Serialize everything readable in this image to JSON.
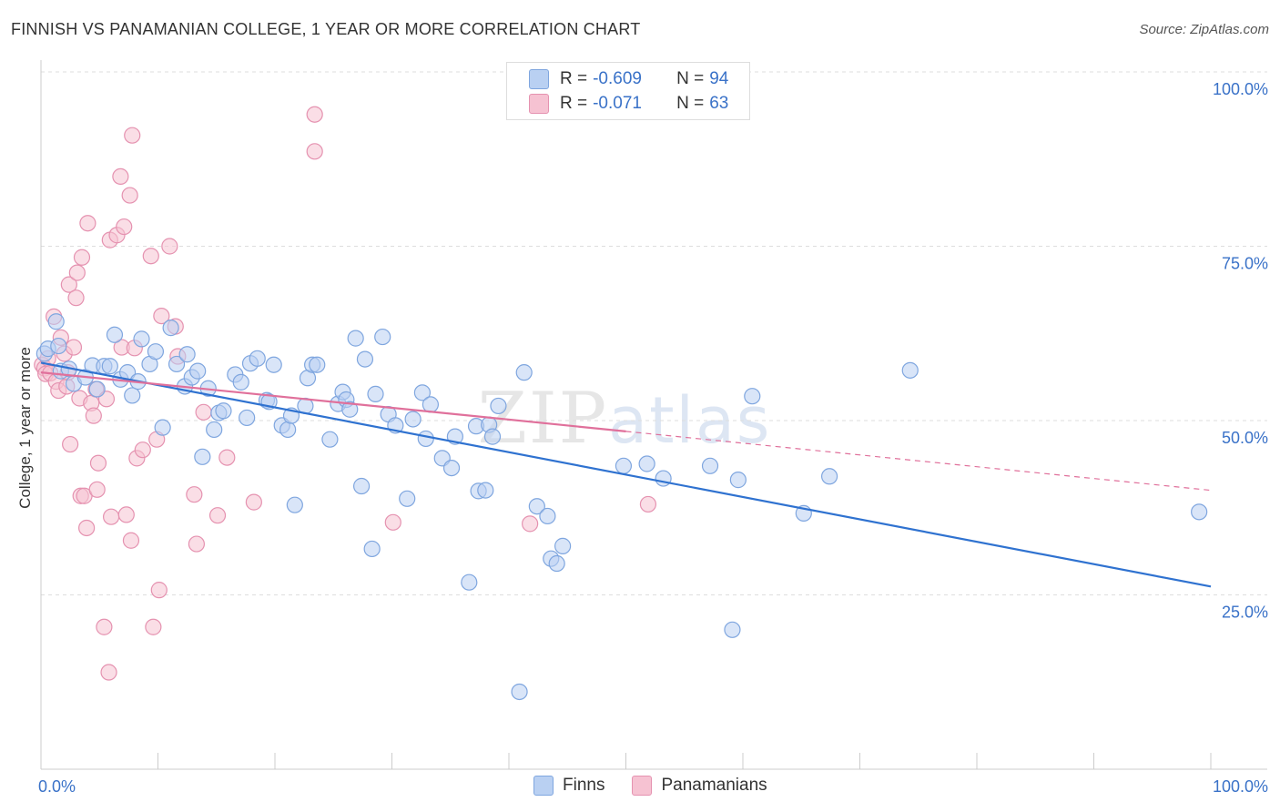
{
  "title": "FINNISH VS PANAMANIAN COLLEGE, 1 YEAR OR MORE CORRELATION CHART",
  "source": "Source: ZipAtlas.com",
  "watermark": "ZIPatlas",
  "colors": {
    "finns_fill": "#b9d0f2",
    "finns_stroke": "#7fa6df",
    "finns_line": "#2f72d0",
    "pan_fill": "#f6c2d2",
    "pan_stroke": "#e592b0",
    "pan_line": "#e0709b",
    "tick": "#3a72c8"
  },
  "legend": {
    "finns": {
      "r_label": "R =",
      "r_value": "-0.609",
      "n_label": "N =",
      "n_value": "94"
    },
    "pan": {
      "r_label": "R =",
      "r_value": "-0.071",
      "n_label": "N =",
      "n_value": "63"
    }
  },
  "bottom_legend": {
    "finns": "Finns",
    "pan": "Panamanians"
  },
  "chart_data": {
    "type": "scatter",
    "title": "FINNISH VS PANAMANIAN COLLEGE, 1 YEAR OR MORE CORRELATION CHART",
    "xlabel": "",
    "ylabel": "College, 1 year or more",
    "xlim": [
      0,
      100
    ],
    "ylim": [
      0,
      100
    ],
    "x_tick_labels": [
      "0.0%",
      "100.0%"
    ],
    "y_ticks": [
      25,
      50,
      75,
      100
    ],
    "y_tick_labels": [
      "25.0%",
      "50.0%",
      "75.0%",
      "100.0%"
    ],
    "series": [
      {
        "name": "Finns",
        "trend": {
          "x": [
            0,
            100
          ],
          "y": [
            58.3,
            26.2
          ]
        },
        "points": [
          [
            0.3,
            59.6
          ],
          [
            0.6,
            60.3
          ],
          [
            1.3,
            64.2
          ],
          [
            1.5,
            60.7
          ],
          [
            1.7,
            57.1
          ],
          [
            2.4,
            57.4
          ],
          [
            2.8,
            55.3
          ],
          [
            3.8,
            56.2
          ],
          [
            4.4,
            57.9
          ],
          [
            4.8,
            54.5
          ],
          [
            5.4,
            57.8
          ],
          [
            5.9,
            57.8
          ],
          [
            6.3,
            62.3
          ],
          [
            6.8,
            55.9
          ],
          [
            7.4,
            56.9
          ],
          [
            7.8,
            53.6
          ],
          [
            8.3,
            55.6
          ],
          [
            8.6,
            61.7
          ],
          [
            9.3,
            58.1
          ],
          [
            9.8,
            59.9
          ],
          [
            10.4,
            49.0
          ],
          [
            11.1,
            63.3
          ],
          [
            11.6,
            58.1
          ],
          [
            12.3,
            54.9
          ],
          [
            12.5,
            59.5
          ],
          [
            12.9,
            56.2
          ],
          [
            13.4,
            57.1
          ],
          [
            13.8,
            44.8
          ],
          [
            14.3,
            54.6
          ],
          [
            14.8,
            48.7
          ],
          [
            15.2,
            51.1
          ],
          [
            15.6,
            51.4
          ],
          [
            16.6,
            56.6
          ],
          [
            17.1,
            55.5
          ],
          [
            17.6,
            50.4
          ],
          [
            17.9,
            58.2
          ],
          [
            18.5,
            58.9
          ],
          [
            19.3,
            52.9
          ],
          [
            19.5,
            52.7
          ],
          [
            19.9,
            58.0
          ],
          [
            20.6,
            49.3
          ],
          [
            21.1,
            48.7
          ],
          [
            21.4,
            50.7
          ],
          [
            21.7,
            37.9
          ],
          [
            22.6,
            52.1
          ],
          [
            22.8,
            56.1
          ],
          [
            23.2,
            58.0
          ],
          [
            23.6,
            58.0
          ],
          [
            24.7,
            47.3
          ],
          [
            25.4,
            52.4
          ],
          [
            25.8,
            54.1
          ],
          [
            26.1,
            53.0
          ],
          [
            26.4,
            51.6
          ],
          [
            26.9,
            61.8
          ],
          [
            27.4,
            40.6
          ],
          [
            27.7,
            58.8
          ],
          [
            28.3,
            31.6
          ],
          [
            28.6,
            53.8
          ],
          [
            29.2,
            62.0
          ],
          [
            29.7,
            50.9
          ],
          [
            30.3,
            49.3
          ],
          [
            31.3,
            38.8
          ],
          [
            31.8,
            50.2
          ],
          [
            32.6,
            54.0
          ],
          [
            32.9,
            47.4
          ],
          [
            33.3,
            52.3
          ],
          [
            34.3,
            44.6
          ],
          [
            35.1,
            43.2
          ],
          [
            35.4,
            47.7
          ],
          [
            36.6,
            26.8
          ],
          [
            37.2,
            49.2
          ],
          [
            37.4,
            39.9
          ],
          [
            38.0,
            40.0
          ],
          [
            38.3,
            49.4
          ],
          [
            38.6,
            47.7
          ],
          [
            39.1,
            52.1
          ],
          [
            40.9,
            11.1
          ],
          [
            41.3,
            56.9
          ],
          [
            42.4,
            37.7
          ],
          [
            43.3,
            36.3
          ],
          [
            43.6,
            30.2
          ],
          [
            44.1,
            29.5
          ],
          [
            44.6,
            32.0
          ],
          [
            49.8,
            43.5
          ],
          [
            51.8,
            43.8
          ],
          [
            53.2,
            41.7
          ],
          [
            57.2,
            43.5
          ],
          [
            59.1,
            20.0
          ],
          [
            59.6,
            41.5
          ],
          [
            60.8,
            53.5
          ],
          [
            65.2,
            36.7
          ],
          [
            67.4,
            42.0
          ],
          [
            74.3,
            57.2
          ],
          [
            99.0,
            36.9
          ]
        ]
      },
      {
        "name": "Panamanians",
        "trend": {
          "x": [
            0,
            100
          ],
          "y": [
            56.9,
            40.0
          ],
          "solid_until_x": 50
        },
        "points": [
          [
            0.1,
            58.0
          ],
          [
            0.3,
            57.5
          ],
          [
            0.4,
            56.7
          ],
          [
            0.6,
            58.9
          ],
          [
            0.8,
            56.8
          ],
          [
            1.1,
            64.9
          ],
          [
            1.3,
            55.6
          ],
          [
            1.5,
            54.3
          ],
          [
            1.7,
            61.9
          ],
          [
            2.0,
            59.6
          ],
          [
            2.2,
            54.9
          ],
          [
            2.3,
            56.9
          ],
          [
            2.4,
            69.5
          ],
          [
            2.5,
            46.6
          ],
          [
            2.8,
            60.5
          ],
          [
            3.0,
            67.6
          ],
          [
            3.1,
            71.2
          ],
          [
            3.3,
            53.2
          ],
          [
            3.4,
            39.2
          ],
          [
            3.5,
            73.4
          ],
          [
            3.7,
            39.2
          ],
          [
            3.9,
            34.6
          ],
          [
            4.0,
            78.3
          ],
          [
            4.3,
            52.5
          ],
          [
            4.5,
            50.7
          ],
          [
            4.7,
            54.5
          ],
          [
            4.8,
            40.1
          ],
          [
            4.9,
            43.9
          ],
          [
            5.4,
            20.4
          ],
          [
            5.6,
            53.1
          ],
          [
            5.8,
            13.9
          ],
          [
            5.9,
            75.9
          ],
          [
            6.0,
            36.2
          ],
          [
            6.5,
            76.6
          ],
          [
            6.8,
            85.0
          ],
          [
            6.9,
            60.5
          ],
          [
            7.1,
            77.8
          ],
          [
            7.3,
            36.5
          ],
          [
            7.6,
            82.3
          ],
          [
            7.7,
            32.8
          ],
          [
            7.8,
            90.9
          ],
          [
            8.0,
            60.4
          ],
          [
            8.2,
            44.6
          ],
          [
            8.7,
            45.8
          ],
          [
            9.4,
            73.6
          ],
          [
            9.6,
            20.4
          ],
          [
            9.9,
            47.3
          ],
          [
            10.1,
            25.7
          ],
          [
            10.3,
            65.0
          ],
          [
            11.0,
            75.0
          ],
          [
            11.5,
            63.5
          ],
          [
            11.7,
            59.2
          ],
          [
            13.1,
            39.4
          ],
          [
            13.3,
            32.3
          ],
          [
            13.9,
            51.2
          ],
          [
            15.1,
            36.4
          ],
          [
            15.9,
            44.7
          ],
          [
            18.2,
            38.3
          ],
          [
            23.4,
            93.9
          ],
          [
            23.4,
            88.6
          ],
          [
            30.1,
            35.4
          ],
          [
            41.8,
            35.2
          ],
          [
            51.9,
            38.0
          ]
        ]
      }
    ]
  }
}
